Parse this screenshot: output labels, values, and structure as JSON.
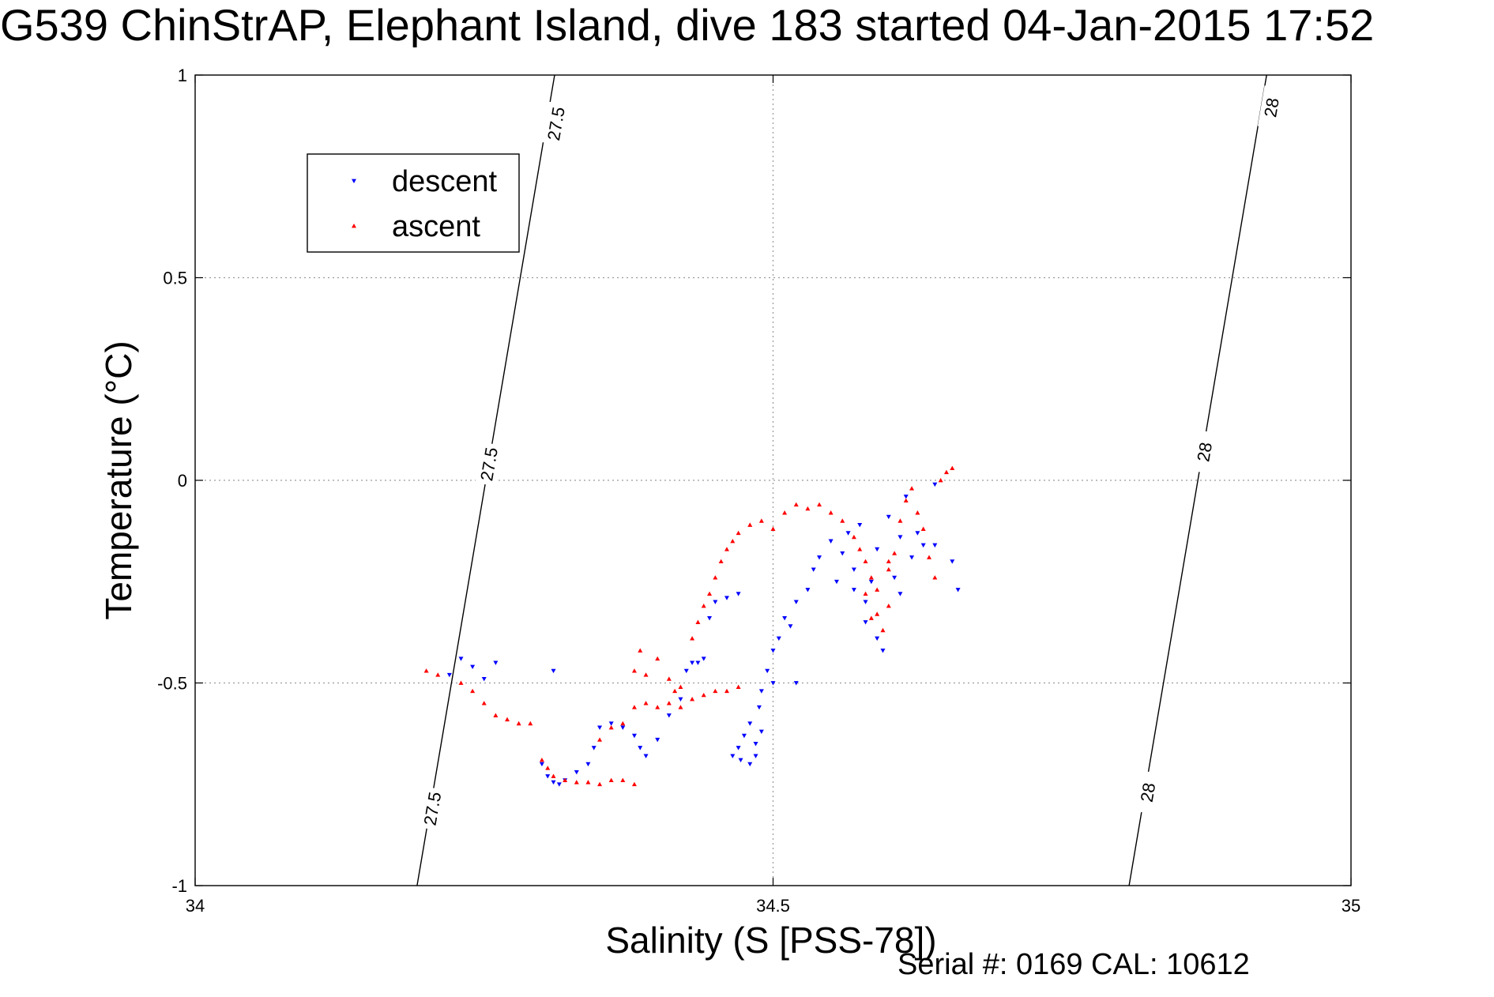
{
  "title": "G539 ChinStrAP, Elephant Island, dive 183 started 04-Jan-2015 17:52",
  "serial": "Serial #: 0169 CAL: 10612",
  "chart_data": {
    "type": "scatter",
    "xlabel": "Salinity (S [PSS-78])",
    "ylabel": "Temperature (°C)",
    "xlim": [
      34,
      35
    ],
    "ylim": [
      -1,
      1
    ],
    "xticks": [
      34,
      34.5,
      35
    ],
    "xtick_labels": [
      "34",
      "34.5",
      "35"
    ],
    "yticks": [
      -1,
      -0.5,
      0,
      0.5,
      1
    ],
    "ytick_labels": [
      "-1",
      "-0.5",
      "0",
      "0.5",
      "1"
    ],
    "grid": true,
    "legend": {
      "position": "top-left",
      "entries": [
        "descent",
        "ascent"
      ]
    },
    "colors": {
      "descent": "#0000ff",
      "ascent": "#ff0000",
      "axes": "#000000",
      "grid": "#9a9a9a"
    },
    "series": [
      {
        "name": "descent",
        "marker": "triangle-down",
        "color": "#0000ff",
        "points": [
          [
            34.23,
            -0.44
          ],
          [
            34.24,
            -0.46
          ],
          [
            34.22,
            -0.48
          ],
          [
            34.25,
            -0.49
          ],
          [
            34.26,
            -0.45
          ],
          [
            34.31,
            -0.47
          ],
          [
            34.3,
            -0.7
          ],
          [
            34.305,
            -0.73
          ],
          [
            34.31,
            -0.745
          ],
          [
            34.315,
            -0.75
          ],
          [
            34.32,
            -0.74
          ],
          [
            34.33,
            -0.72
          ],
          [
            34.34,
            -0.7
          ],
          [
            34.345,
            -0.66
          ],
          [
            34.35,
            -0.61
          ],
          [
            34.36,
            -0.6
          ],
          [
            34.37,
            -0.61
          ],
          [
            34.38,
            -0.63
          ],
          [
            34.385,
            -0.66
          ],
          [
            34.39,
            -0.68
          ],
          [
            34.4,
            -0.64
          ],
          [
            34.41,
            -0.58
          ],
          [
            34.42,
            -0.54
          ],
          [
            34.425,
            -0.47
          ],
          [
            34.43,
            -0.45
          ],
          [
            34.435,
            -0.45
          ],
          [
            34.44,
            -0.44
          ],
          [
            34.445,
            -0.34
          ],
          [
            34.45,
            -0.3
          ],
          [
            34.46,
            -0.29
          ],
          [
            34.47,
            -0.28
          ],
          [
            34.465,
            -0.68
          ],
          [
            34.47,
            -0.66
          ],
          [
            34.472,
            -0.69
          ],
          [
            34.475,
            -0.63
          ],
          [
            34.48,
            -0.7
          ],
          [
            34.48,
            -0.6
          ],
          [
            34.485,
            -0.68
          ],
          [
            34.485,
            -0.65
          ],
          [
            34.488,
            -0.56
          ],
          [
            34.49,
            -0.52
          ],
          [
            34.49,
            -0.62
          ],
          [
            34.495,
            -0.47
          ],
          [
            34.5,
            -0.42
          ],
          [
            34.5,
            -0.5
          ],
          [
            34.505,
            -0.39
          ],
          [
            34.51,
            -0.34
          ],
          [
            34.515,
            -0.36
          ],
          [
            34.52,
            -0.3
          ],
          [
            34.52,
            -0.5
          ],
          [
            34.53,
            -0.27
          ],
          [
            34.535,
            -0.22
          ],
          [
            34.54,
            -0.19
          ],
          [
            34.55,
            -0.15
          ],
          [
            34.555,
            -0.25
          ],
          [
            34.56,
            -0.18
          ],
          [
            34.565,
            -0.13
          ],
          [
            34.57,
            -0.22
          ],
          [
            34.57,
            -0.27
          ],
          [
            34.575,
            -0.11
          ],
          [
            34.58,
            -0.3
          ],
          [
            34.58,
            -0.35
          ],
          [
            34.585,
            -0.25
          ],
          [
            34.59,
            -0.17
          ],
          [
            34.59,
            -0.39
          ],
          [
            34.595,
            -0.42
          ],
          [
            34.6,
            -0.09
          ],
          [
            34.605,
            -0.24
          ],
          [
            34.61,
            -0.28
          ],
          [
            34.61,
            -0.14
          ],
          [
            34.615,
            -0.04
          ],
          [
            34.62,
            -0.19
          ],
          [
            34.625,
            -0.13
          ],
          [
            34.63,
            -0.16
          ],
          [
            34.64,
            -0.01
          ],
          [
            34.64,
            -0.16
          ],
          [
            34.655,
            -0.2
          ],
          [
            34.66,
            -0.27
          ]
        ]
      },
      {
        "name": "ascent",
        "marker": "triangle-up",
        "color": "#ff0000",
        "points": [
          [
            34.2,
            -0.47
          ],
          [
            34.21,
            -0.48
          ],
          [
            34.23,
            -0.5
          ],
          [
            34.24,
            -0.52
          ],
          [
            34.25,
            -0.55
          ],
          [
            34.26,
            -0.58
          ],
          [
            34.27,
            -0.59
          ],
          [
            34.28,
            -0.6
          ],
          [
            34.29,
            -0.6
          ],
          [
            34.3,
            -0.69
          ],
          [
            34.305,
            -0.71
          ],
          [
            34.31,
            -0.73
          ],
          [
            34.32,
            -0.74
          ],
          [
            34.33,
            -0.745
          ],
          [
            34.34,
            -0.745
          ],
          [
            34.35,
            -0.75
          ],
          [
            34.36,
            -0.74
          ],
          [
            34.37,
            -0.74
          ],
          [
            34.38,
            -0.75
          ],
          [
            34.35,
            -0.64
          ],
          [
            34.36,
            -0.61
          ],
          [
            34.37,
            -0.6
          ],
          [
            34.38,
            -0.56
          ],
          [
            34.39,
            -0.55
          ],
          [
            34.4,
            -0.56
          ],
          [
            34.41,
            -0.55
          ],
          [
            34.42,
            -0.56
          ],
          [
            34.43,
            -0.54
          ],
          [
            34.44,
            -0.53
          ],
          [
            34.45,
            -0.52
          ],
          [
            34.46,
            -0.52
          ],
          [
            34.47,
            -0.51
          ],
          [
            34.38,
            -0.47
          ],
          [
            34.385,
            -0.42
          ],
          [
            34.39,
            -0.48
          ],
          [
            34.4,
            -0.44
          ],
          [
            34.41,
            -0.49
          ],
          [
            34.415,
            -0.52
          ],
          [
            34.42,
            -0.51
          ],
          [
            34.43,
            -0.39
          ],
          [
            34.435,
            -0.35
          ],
          [
            34.44,
            -0.31
          ],
          [
            34.445,
            -0.28
          ],
          [
            34.45,
            -0.24
          ],
          [
            34.455,
            -0.2
          ],
          [
            34.46,
            -0.17
          ],
          [
            34.465,
            -0.15
          ],
          [
            34.47,
            -0.13
          ],
          [
            34.48,
            -0.11
          ],
          [
            34.49,
            -0.1
          ],
          [
            34.5,
            -0.12
          ],
          [
            34.51,
            -0.08
          ],
          [
            34.52,
            -0.06
          ],
          [
            34.53,
            -0.07
          ],
          [
            34.54,
            -0.06
          ],
          [
            34.55,
            -0.08
          ],
          [
            34.56,
            -0.1
          ],
          [
            34.57,
            -0.14
          ],
          [
            34.575,
            -0.17
          ],
          [
            34.58,
            -0.2
          ],
          [
            34.585,
            -0.24
          ],
          [
            34.59,
            -0.27
          ],
          [
            34.59,
            -0.33
          ],
          [
            34.595,
            -0.37
          ],
          [
            34.6,
            -0.31
          ],
          [
            34.605,
            -0.18
          ],
          [
            34.61,
            -0.1
          ],
          [
            34.615,
            -0.05
          ],
          [
            34.62,
            -0.02
          ],
          [
            34.625,
            -0.08
          ],
          [
            34.63,
            -0.12
          ],
          [
            34.635,
            -0.19
          ],
          [
            34.64,
            -0.24
          ],
          [
            34.645,
            0.0
          ],
          [
            34.65,
            0.02
          ],
          [
            34.655,
            0.03
          ],
          [
            34.6,
            -0.2
          ],
          [
            34.58,
            -0.28
          ],
          [
            34.585,
            -0.34
          ],
          [
            34.6,
            -0.22
          ]
        ]
      }
    ],
    "contours": [
      {
        "label": "27.5",
        "from": [
          34.192,
          -1.0
        ],
        "to": [
          34.311,
          1.0
        ],
        "label_positions": [
          [
            34.205,
            -0.81
          ],
          [
            34.254,
            0.04
          ],
          [
            34.312,
            0.88
          ]
        ]
      },
      {
        "label": "28",
        "from": [
          34.808,
          -1.0
        ],
        "to": [
          34.927,
          1.0
        ],
        "label_positions": [
          [
            34.824,
            -0.77
          ],
          [
            34.873,
            0.07
          ],
          [
            34.931,
            0.92
          ]
        ]
      }
    ]
  }
}
